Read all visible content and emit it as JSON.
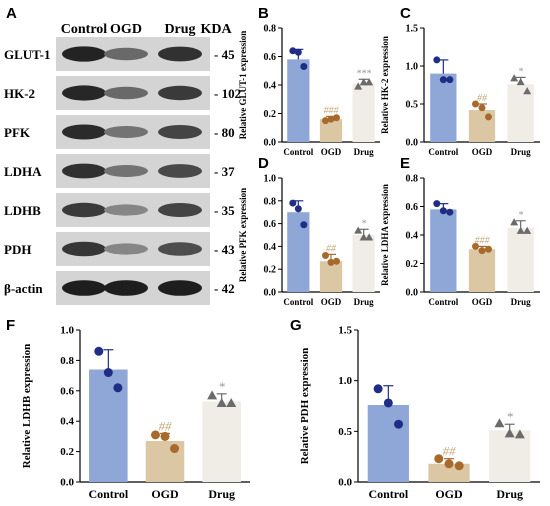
{
  "panel_a": {
    "letter": "A",
    "lanes": [
      "Control",
      "OGD",
      "Drug"
    ],
    "kda_header": "KDA",
    "blots": [
      {
        "name": "GLUT-1",
        "kda": "45",
        "intensity": [
          0.92,
          0.55,
          0.85
        ]
      },
      {
        "name": "HK-2",
        "kda": "102",
        "intensity": [
          0.9,
          0.55,
          0.8
        ]
      },
      {
        "name": "PFK",
        "kda": "80",
        "intensity": [
          0.88,
          0.5,
          0.75
        ]
      },
      {
        "name": "LDHA",
        "kda": "37",
        "intensity": [
          0.85,
          0.5,
          0.72
        ]
      },
      {
        "name": "LDHB",
        "kda": "35",
        "intensity": [
          0.8,
          0.4,
          0.75
        ]
      },
      {
        "name": "PDH",
        "kda": "43",
        "intensity": [
          0.82,
          0.4,
          0.7
        ]
      },
      {
        "name": "β-actin",
        "kda": "42",
        "intensity": [
          0.95,
          0.95,
          0.95
        ]
      }
    ]
  },
  "colors": {
    "control": "#8fa7d6",
    "ogd": "#dcc7a4",
    "drug": "#f0ede6",
    "control_dot": "#1f2d86",
    "ogd_dot": "#a86a2c",
    "drug_dot": "#6b6b6b",
    "sig_ogd": "#c4a87a",
    "sig_drug": "#9a9a9a"
  },
  "chart_data": [
    {
      "letter": "B",
      "type": "bar",
      "categories": [
        "Control",
        "OGD",
        "Drug"
      ],
      "values": [
        0.58,
        0.16,
        0.41
      ],
      "errors": [
        0.07,
        0.02,
        0.03
      ],
      "points": [
        [
          0.64,
          0.63,
          0.53
        ],
        [
          0.15,
          0.16,
          0.17
        ],
        [
          0.39,
          0.42,
          0.42
        ]
      ],
      "ylabel": "Relative GLUT-1 expression",
      "ylim": [
        0,
        0.8
      ],
      "yticks": [
        "0.0",
        "0.2",
        "0.4",
        "0.6",
        "0.8"
      ],
      "sig": [
        "",
        "###",
        "***"
      ]
    },
    {
      "letter": "C",
      "type": "bar",
      "categories": [
        "Control",
        "OGD",
        "Drug"
      ],
      "values": [
        0.9,
        0.42,
        0.76
      ],
      "errors": [
        0.18,
        0.08,
        0.09
      ],
      "points": [
        [
          1.08,
          0.82,
          0.82
        ],
        [
          0.5,
          0.45,
          0.33
        ],
        [
          0.84,
          0.79,
          0.67
        ]
      ],
      "ylabel": "Relative HK-2 expression",
      "ylim": [
        0,
        1.5
      ],
      "yticks": [
        "0.0",
        "0.5",
        "1.0",
        "1.5"
      ],
      "sig": [
        "",
        "##",
        "*"
      ]
    },
    {
      "letter": "D",
      "type": "bar",
      "categories": [
        "Control",
        "OGD",
        "Drug"
      ],
      "values": [
        0.7,
        0.27,
        0.5
      ],
      "errors": [
        0.1,
        0.06,
        0.05
      ],
      "points": [
        [
          0.78,
          0.73,
          0.59
        ],
        [
          0.32,
          0.26,
          0.27
        ],
        [
          0.54,
          0.48,
          0.48
        ]
      ],
      "ylabel": "Relative PFK expression",
      "ylim": [
        0,
        1.0
      ],
      "yticks": [
        "0.0",
        "0.2",
        "0.4",
        "0.6",
        "0.8",
        "1.0"
      ],
      "sig": [
        "",
        "##",
        "*"
      ]
    },
    {
      "letter": "E",
      "type": "bar",
      "categories": [
        "Control",
        "OGD",
        "Drug"
      ],
      "values": [
        0.58,
        0.3,
        0.45
      ],
      "errors": [
        0.04,
        0.02,
        0.05
      ],
      "points": [
        [
          0.62,
          0.57,
          0.56
        ],
        [
          0.32,
          0.29,
          0.3
        ],
        [
          0.49,
          0.43,
          0.43
        ]
      ],
      "ylabel": "Relative LDHA expression",
      "ylim": [
        0,
        0.8
      ],
      "yticks": [
        "0.0",
        "0.2",
        "0.4",
        "0.6",
        "0.8"
      ],
      "sig": [
        "",
        "###",
        "*"
      ]
    },
    {
      "letter": "F",
      "type": "bar",
      "categories": [
        "Control",
        "OGD",
        "Drug"
      ],
      "values": [
        0.74,
        0.27,
        0.53
      ],
      "errors": [
        0.13,
        0.05,
        0.05
      ],
      "points": [
        [
          0.86,
          0.72,
          0.62
        ],
        [
          0.31,
          0.3,
          0.22
        ],
        [
          0.57,
          0.52,
          0.52
        ]
      ],
      "ylabel": "Relative LDHB expression",
      "ylim": [
        0,
        1.0
      ],
      "yticks": [
        "0.0",
        "0.2",
        "0.4",
        "0.6",
        "0.8",
        "1.0"
      ],
      "sig": [
        "",
        "##",
        "*"
      ]
    },
    {
      "letter": "G",
      "type": "bar",
      "categories": [
        "Control",
        "OGD",
        "Drug"
      ],
      "values": [
        0.76,
        0.18,
        0.51
      ],
      "errors": [
        0.19,
        0.05,
        0.06
      ],
      "points": [
        [
          0.92,
          0.78,
          0.57
        ],
        [
          0.23,
          0.18,
          0.16
        ],
        [
          0.58,
          0.48,
          0.47
        ]
      ],
      "ylabel": "Relative PDH expression",
      "ylim": [
        0,
        1.5
      ],
      "yticks": [
        "0.0",
        "0.5",
        "1.0",
        "1.5"
      ],
      "sig": [
        "",
        "##",
        "*"
      ]
    }
  ]
}
